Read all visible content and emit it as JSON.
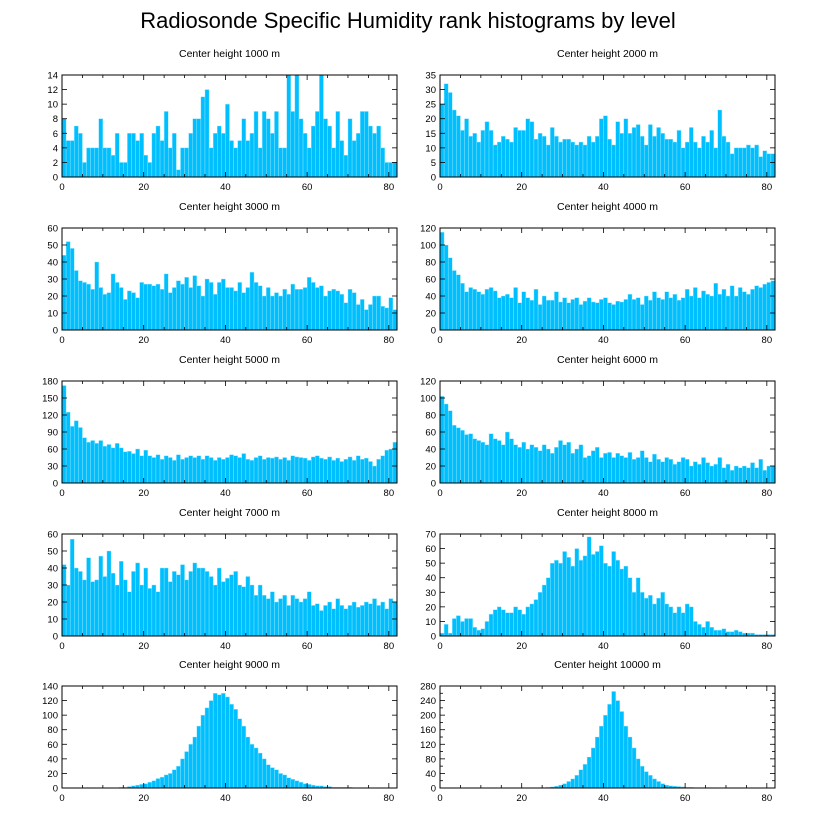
{
  "title": "Radiosonde Specific Humidity rank histograms by level",
  "colors": {
    "bar": "#00BFFF",
    "bar_edge": "#9be8ff",
    "axis": "#000000"
  },
  "chart_data": [
    {
      "type": "bar",
      "title": "Center height 1000 m",
      "xlabel": "",
      "ylabel": "",
      "xlim": [
        0,
        82
      ],
      "ylim": [
        0,
        14
      ],
      "xticks": [
        0,
        20,
        40,
        60,
        80
      ],
      "yticks": [
        0,
        2,
        4,
        6,
        8,
        10,
        12,
        14
      ],
      "values": [
        8,
        5,
        5,
        7,
        6,
        2,
        4,
        4,
        4,
        8,
        4,
        4,
        3,
        6,
        2,
        2,
        6,
        6,
        5,
        6,
        3,
        2,
        6,
        7,
        5,
        9,
        4,
        6,
        1,
        4,
        4,
        6,
        8,
        8,
        11,
        12,
        4,
        6,
        7,
        6,
        10,
        5,
        4,
        5,
        8,
        5,
        6,
        9,
        4,
        9,
        8,
        6,
        9,
        4,
        4,
        14,
        9,
        14,
        8,
        6,
        4,
        7,
        9,
        14,
        8,
        7,
        4,
        9,
        5,
        3,
        8,
        5,
        6,
        9,
        9,
        7,
        6,
        7,
        4,
        2,
        2,
        2
      ]
    },
    {
      "type": "bar",
      "title": "Center height 2000 m",
      "xlabel": "",
      "ylabel": "",
      "xlim": [
        0,
        82
      ],
      "ylim": [
        0,
        35
      ],
      "xticks": [
        0,
        20,
        40,
        60,
        80
      ],
      "yticks": [
        0,
        5,
        10,
        15,
        20,
        25,
        30,
        35
      ],
      "values": [
        25,
        32,
        29,
        23,
        21,
        16,
        20,
        14,
        15,
        12,
        16,
        19,
        16,
        11,
        12,
        14,
        13,
        12,
        17,
        16,
        16,
        20,
        19,
        13,
        15,
        14,
        11,
        17,
        14,
        12,
        13,
        13,
        12,
        11,
        12,
        11,
        14,
        12,
        14,
        20,
        21,
        13,
        11,
        19,
        15,
        20,
        15,
        17,
        18,
        14,
        11,
        18,
        14,
        17,
        15,
        13,
        13,
        12,
        16,
        10,
        12,
        17,
        12,
        10,
        14,
        12,
        16,
        10,
        23,
        14,
        12,
        8,
        10,
        10,
        10,
        11,
        10,
        11,
        7,
        9,
        8,
        8
      ]
    },
    {
      "type": "bar",
      "title": "Center height 3000 m",
      "xlabel": "",
      "ylabel": "",
      "xlim": [
        0,
        82
      ],
      "ylim": [
        0,
        60
      ],
      "xticks": [
        0,
        20,
        40,
        60,
        80
      ],
      "yticks": [
        0,
        10,
        20,
        30,
        40,
        50,
        60
      ],
      "values": [
        44,
        52,
        48,
        35,
        29,
        28,
        27,
        24,
        40,
        25,
        21,
        22,
        33,
        28,
        25,
        18,
        23,
        22,
        19,
        28,
        27,
        27,
        26,
        27,
        24,
        33,
        22,
        25,
        29,
        27,
        31,
        25,
        32,
        26,
        20,
        30,
        28,
        21,
        28,
        30,
        25,
        25,
        23,
        28,
        22,
        25,
        34,
        28,
        26,
        20,
        25,
        20,
        22,
        20,
        24,
        21,
        27,
        24,
        24,
        25,
        31,
        28,
        25,
        26,
        20,
        23,
        24,
        23,
        21,
        16,
        24,
        22,
        15,
        18,
        12,
        15,
        20,
        20,
        14,
        13,
        19,
        12
      ]
    },
    {
      "type": "bar",
      "title": "Center height 4000 m",
      "xlabel": "",
      "ylabel": "",
      "xlim": [
        0,
        82
      ],
      "ylim": [
        0,
        120
      ],
      "xticks": [
        0,
        20,
        40,
        60,
        80
      ],
      "yticks": [
        0,
        20,
        40,
        60,
        80,
        100,
        120
      ],
      "values": [
        115,
        100,
        85,
        70,
        65,
        55,
        45,
        50,
        48,
        45,
        42,
        48,
        50,
        46,
        38,
        40,
        42,
        38,
        50,
        32,
        45,
        38,
        35,
        48,
        30,
        40,
        35,
        35,
        45,
        33,
        38,
        32,
        36,
        38,
        30,
        34,
        38,
        33,
        32,
        36,
        38,
        32,
        30,
        34,
        33,
        36,
        42,
        36,
        38,
        30,
        40,
        35,
        45,
        38,
        36,
        45,
        38,
        42,
        35,
        38,
        48,
        40,
        50,
        38,
        46,
        42,
        40,
        55,
        42,
        48,
        40,
        52,
        40,
        50,
        45,
        42,
        48,
        52,
        50,
        54,
        56,
        58
      ]
    },
    {
      "type": "bar",
      "title": "Center height 5000 m",
      "xlabel": "",
      "ylabel": "",
      "xlim": [
        0,
        82
      ],
      "ylim": [
        0,
        180
      ],
      "xticks": [
        0,
        20,
        40,
        60,
        80
      ],
      "yticks": [
        0,
        30,
        60,
        90,
        120,
        150,
        180
      ],
      "values": [
        172,
        125,
        100,
        110,
        98,
        80,
        72,
        75,
        70,
        75,
        65,
        68,
        62,
        70,
        62,
        55,
        56,
        52,
        60,
        48,
        58,
        48,
        45,
        50,
        42,
        48,
        45,
        40,
        50,
        42,
        45,
        48,
        45,
        48,
        42,
        48,
        45,
        40,
        45,
        42,
        45,
        50,
        48,
        45,
        52,
        42,
        40,
        45,
        48,
        42,
        45,
        44,
        46,
        42,
        45,
        40,
        48,
        46,
        45,
        44,
        40,
        46,
        48,
        44,
        42,
        46,
        40,
        44,
        38,
        42,
        46,
        40,
        48,
        42,
        44,
        38,
        30,
        42,
        48,
        58,
        60,
        72
      ]
    },
    {
      "type": "bar",
      "title": "Center height 6000 m",
      "xlabel": "",
      "ylabel": "",
      "xlim": [
        0,
        82
      ],
      "ylim": [
        0,
        120
      ],
      "xticks": [
        0,
        20,
        40,
        60,
        80
      ],
      "yticks": [
        0,
        20,
        40,
        60,
        80,
        100,
        120
      ],
      "values": [
        102,
        93,
        85,
        68,
        65,
        62,
        57,
        58,
        52,
        50,
        48,
        45,
        58,
        52,
        50,
        45,
        60,
        52,
        45,
        42,
        48,
        40,
        45,
        42,
        38,
        45,
        40,
        35,
        42,
        50,
        45,
        48,
        35,
        40,
        45,
        30,
        32,
        38,
        42,
        30,
        35,
        36,
        30,
        35,
        32,
        30,
        36,
        28,
        30,
        38,
        30,
        25,
        34,
        28,
        25,
        30,
        28,
        22,
        25,
        30,
        28,
        20,
        25,
        22,
        30,
        24,
        20,
        22,
        30,
        18,
        22,
        15,
        20,
        18,
        20,
        18,
        24,
        18,
        28,
        15,
        20,
        20
      ]
    },
    {
      "type": "bar",
      "title": "Center height 7000 m",
      "xlabel": "",
      "ylabel": "",
      "xlim": [
        0,
        82
      ],
      "ylim": [
        0,
        60
      ],
      "xticks": [
        0,
        20,
        40,
        60,
        80
      ],
      "yticks": [
        0,
        10,
        20,
        30,
        40,
        50,
        60
      ],
      "values": [
        42,
        30,
        57,
        40,
        38,
        33,
        46,
        32,
        33,
        47,
        35,
        50,
        37,
        30,
        44,
        33,
        26,
        38,
        43,
        30,
        40,
        28,
        30,
        26,
        40,
        40,
        32,
        38,
        36,
        42,
        33,
        38,
        43,
        40,
        40,
        38,
        35,
        30,
        40,
        32,
        34,
        36,
        38,
        30,
        29,
        35,
        30,
        24,
        30,
        24,
        22,
        26,
        20,
        22,
        24,
        18,
        24,
        22,
        20,
        22,
        26,
        18,
        19,
        15,
        18,
        20,
        16,
        22,
        18,
        16,
        18,
        20,
        17,
        18,
        20,
        19,
        22,
        18,
        20,
        16,
        22,
        20
      ]
    },
    {
      "type": "bar",
      "title": "Center height 8000 m",
      "xlabel": "",
      "ylabel": "",
      "xlim": [
        0,
        82
      ],
      "ylim": [
        0,
        70
      ],
      "xticks": [
        0,
        20,
        40,
        60,
        80
      ],
      "yticks": [
        0,
        10,
        20,
        30,
        40,
        50,
        60,
        70
      ],
      "values": [
        2,
        8,
        2,
        12,
        14,
        10,
        12,
        12,
        6,
        4,
        5,
        10,
        15,
        18,
        20,
        18,
        16,
        16,
        20,
        18,
        15,
        20,
        22,
        25,
        30,
        35,
        40,
        50,
        52,
        50,
        58,
        54,
        48,
        60,
        52,
        55,
        68,
        56,
        58,
        62,
        50,
        48,
        58,
        52,
        46,
        48,
        40,
        30,
        40,
        30,
        26,
        28,
        22,
        26,
        30,
        22,
        20,
        16,
        20,
        16,
        22,
        20,
        10,
        8,
        6,
        10,
        6,
        4,
        4,
        5,
        3,
        3,
        4,
        3,
        2,
        2,
        2,
        1,
        1,
        1,
        1,
        1
      ]
    },
    {
      "type": "bar",
      "title": "Center height 9000 m",
      "xlabel": "",
      "ylabel": "",
      "xlim": [
        0,
        82
      ],
      "ylim": [
        0,
        140
      ],
      "xticks": [
        0,
        20,
        40,
        60,
        80
      ],
      "yticks": [
        0,
        20,
        40,
        60,
        80,
        100,
        120,
        140
      ],
      "values": [
        0,
        0,
        0,
        0,
        0,
        0,
        0,
        0,
        0,
        0,
        0,
        0,
        0,
        0,
        1,
        1,
        2,
        3,
        4,
        5,
        6,
        8,
        10,
        13,
        15,
        18,
        20,
        25,
        30,
        40,
        50,
        60,
        70,
        85,
        100,
        110,
        120,
        130,
        128,
        130,
        125,
        115,
        108,
        95,
        85,
        70,
        60,
        55,
        48,
        40,
        32,
        28,
        25,
        20,
        18,
        14,
        12,
        10,
        8,
        6,
        5,
        4,
        3,
        3,
        2,
        2,
        1,
        1,
        1,
        1,
        1,
        0,
        0,
        0,
        0,
        0,
        0,
        0,
        0,
        0,
        0,
        0
      ]
    },
    {
      "type": "bar",
      "title": "Center height 10000 m",
      "xlabel": "",
      "ylabel": "",
      "xlim": [
        0,
        82
      ],
      "ylim": [
        0,
        280
      ],
      "xticks": [
        0,
        20,
        40,
        60,
        80
      ],
      "yticks": [
        0,
        20,
        40,
        60,
        80,
        100,
        120,
        140,
        160,
        180,
        200,
        220,
        240,
        260,
        280
      ],
      "ytick_labels": [
        "0",
        "40",
        "80",
        "120",
        "160",
        "200",
        "240",
        "280"
      ],
      "values": [
        0,
        0,
        0,
        0,
        0,
        0,
        0,
        0,
        0,
        0,
        0,
        0,
        0,
        0,
        0,
        0,
        0,
        0,
        0,
        0,
        0,
        0,
        0,
        0,
        1,
        1,
        2,
        3,
        5,
        8,
        12,
        18,
        25,
        35,
        50,
        65,
        85,
        110,
        140,
        170,
        200,
        230,
        265,
        240,
        210,
        170,
        140,
        110,
        80,
        60,
        45,
        35,
        25,
        18,
        12,
        8,
        6,
        5,
        4,
        3,
        2,
        2,
        1,
        1,
        1,
        1,
        1,
        0,
        0,
        0,
        0,
        0,
        0,
        0,
        0,
        0,
        0,
        0,
        0,
        0,
        0,
        0
      ]
    }
  ]
}
